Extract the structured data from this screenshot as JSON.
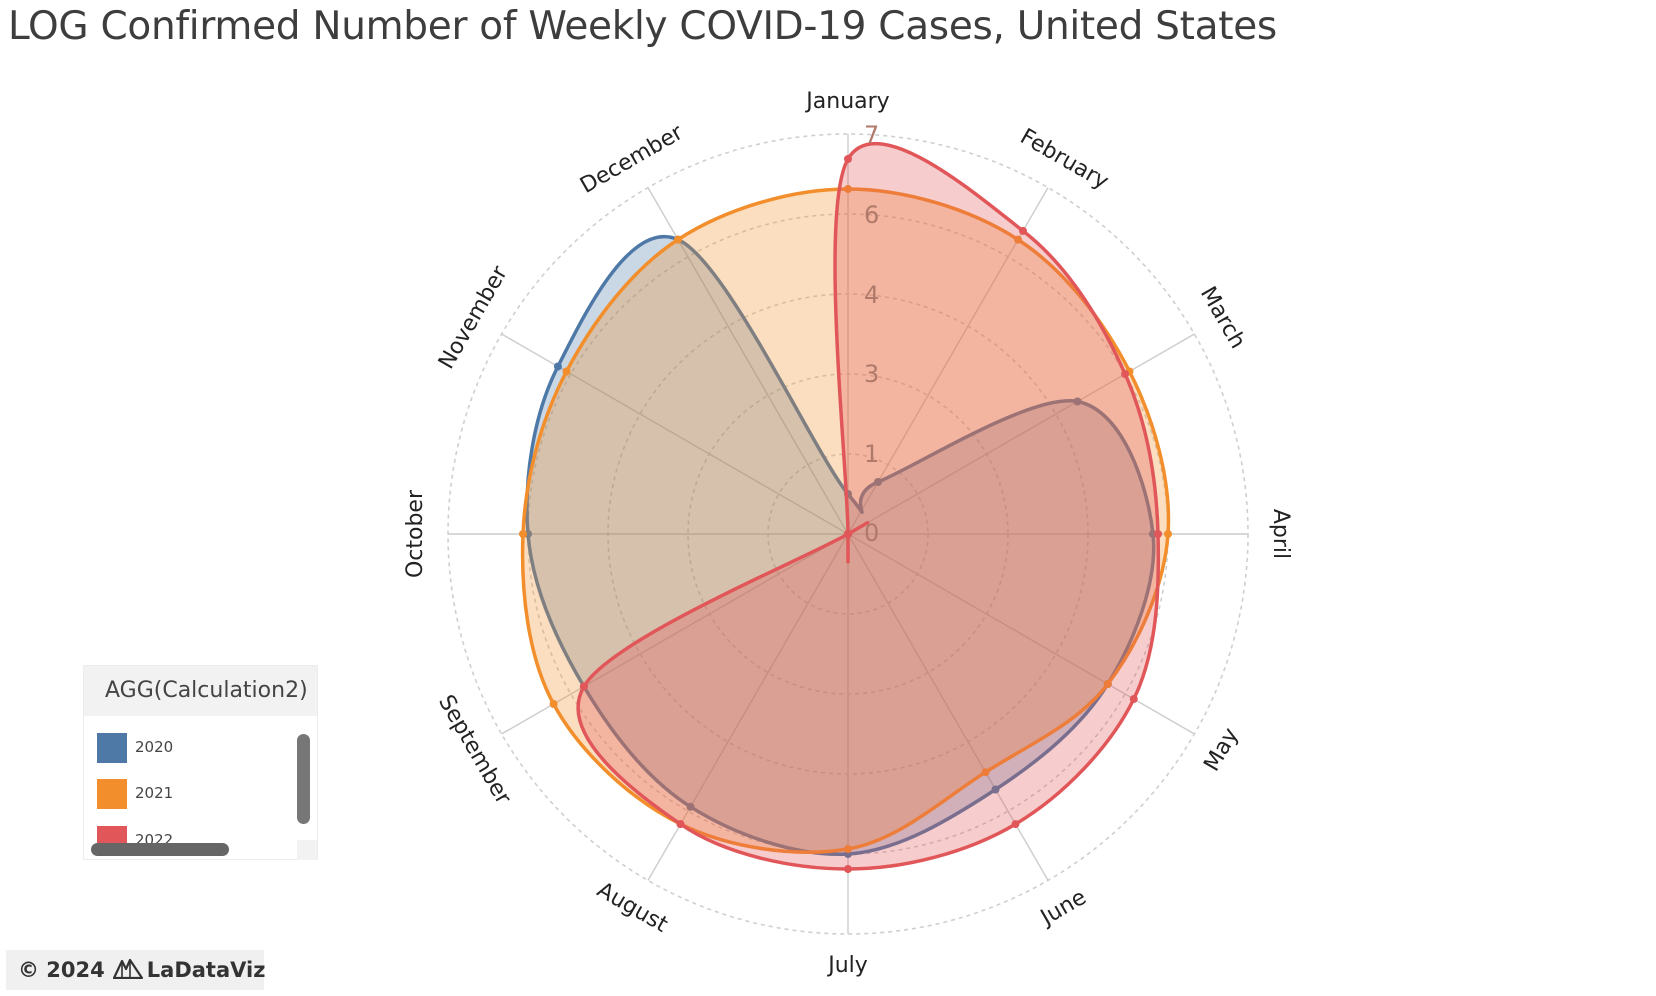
{
  "title": "LOG Confirmed Number of Weekly COVID-19 Cases, United States",
  "legend": {
    "title": "AGG(Calculation2)",
    "items": [
      {
        "label": "2020",
        "color": "#4e79a7"
      },
      {
        "label": "2021",
        "color": "#f28e2b"
      },
      {
        "label": "2022",
        "color": "#e15759"
      }
    ]
  },
  "footer": {
    "copyright": "© 2024",
    "brand": "LaDataViz",
    "logo_icon": "mountain-logo-icon"
  },
  "chart_data": {
    "type": "radar",
    "categories": [
      "January",
      "February",
      "March",
      "April",
      "May",
      "June",
      "July",
      "August",
      "September",
      "October",
      "November",
      "December"
    ],
    "radial_ticks": [
      "0",
      "1",
      "3",
      "4",
      "6",
      "7"
    ],
    "grid": true,
    "legend_position": "bottom-left",
    "series": [
      {
        "name": "2020",
        "color": "#4e79a7",
        "values": [
          0.8,
          1.2,
          5.3,
          6.1,
          6.0,
          5.9,
          6.4,
          6.3,
          6.1,
          6.4,
          6.7,
          6.8
        ]
      },
      {
        "name": "2021",
        "color": "#f28e2b",
        "values": [
          6.9,
          6.8,
          6.5,
          6.4,
          6.0,
          5.5,
          6.3,
          6.7,
          6.8,
          6.5,
          6.5,
          6.8
        ]
      },
      {
        "name": "2022",
        "color": "#e15759",
        "values": [
          7.5,
          7.0,
          6.4,
          6.2,
          6.6,
          6.7,
          6.7,
          6.7,
          6.1,
          0.0,
          0.0,
          0.0
        ]
      }
    ]
  }
}
